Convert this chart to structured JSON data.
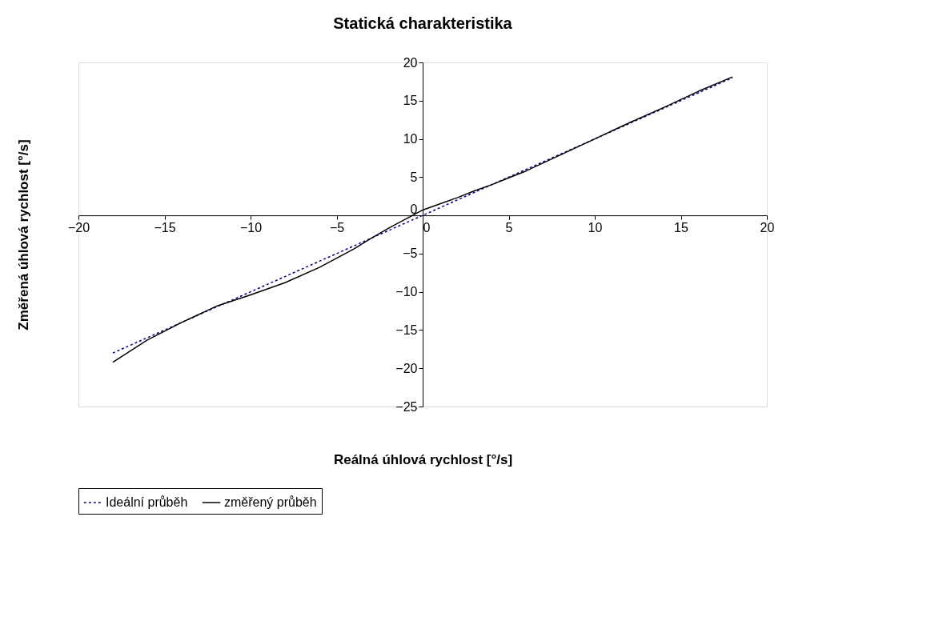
{
  "chart_data": {
    "type": "line",
    "title": "Statická charakteristika",
    "xlabel": "Reálná úhlová rychlost [°/s]",
    "ylabel": "Změřená úhlová rychlost [°/s]",
    "xlim": [
      -20,
      20
    ],
    "xticks": [
      -20,
      -15,
      -10,
      -5,
      0,
      5,
      10,
      15,
      20
    ],
    "ylim": [
      -25,
      20
    ],
    "yticks": [
      -25,
      -20,
      -15,
      -10,
      -5,
      0,
      5,
      10,
      15,
      20
    ],
    "grid": false,
    "legend": "bottom",
    "marker": "none",
    "series": [
      {
        "name": "Ideální průběh",
        "color": "#000080",
        "line_style": "dashed",
        "x": [
          -18,
          18
        ],
        "values": [
          -18,
          18
        ]
      },
      {
        "name": "změřený průběh",
        "color": "#000000",
        "line_style": "solid",
        "x": [
          -18,
          -16,
          -14,
          -12,
          -10,
          -8,
          -6,
          -5,
          -4,
          -3,
          -2,
          -1,
          0,
          1,
          2,
          3,
          4,
          5,
          6,
          8,
          10,
          12,
          14,
          16,
          18
        ],
        "values": [
          -19.2,
          -16.3,
          -14.0,
          -11.9,
          -10.4,
          -8.8,
          -6.8,
          -5.6,
          -4.4,
          -3.0,
          -1.7,
          -0.5,
          0.7,
          1.5,
          2.3,
          3.2,
          4.0,
          4.9,
          5.8,
          7.9,
          10.0,
          12.1,
          14.1,
          16.2,
          18.1
        ]
      }
    ]
  }
}
